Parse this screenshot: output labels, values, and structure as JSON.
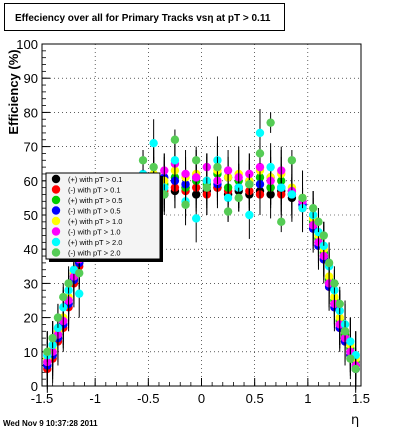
{
  "title": "Effeciency over all for Primary Tracks vsη at pT > 0.11",
  "footer": "Wed Nov  9 10:37:28 2011",
  "chart_data": {
    "type": "scatter",
    "title": "Effeciency over all for Primary Tracks vsη at pT > 0.11",
    "xlabel": "η",
    "ylabel": "Efficiency (%)",
    "xlim": [
      -1.5,
      1.5
    ],
    "ylim": [
      0,
      100
    ],
    "x_ticks": [
      "-1.5",
      "-1",
      "-0.5",
      "0",
      "0.5",
      "1",
      "1.5"
    ],
    "y_ticks": [
      "0",
      "10",
      "20",
      "30",
      "40",
      "50",
      "60",
      "70",
      "80",
      "90",
      "100"
    ],
    "grid": true,
    "legend_position": "left-middle",
    "series": [
      {
        "name": "(+) with pT > 0.1",
        "color": "#000000",
        "x": [
          -1.45,
          -1.4,
          -1.35,
          -1.3,
          -1.25,
          -1.2,
          -1.15,
          -0.55,
          -0.45,
          -0.35,
          -0.25,
          -0.15,
          -0.05,
          0.05,
          0.15,
          0.25,
          0.35,
          0.45,
          0.55,
          0.65,
          0.75,
          0.85,
          0.95,
          1.05,
          1.1,
          1.15,
          1.2,
          1.25,
          1.3,
          1.35,
          1.4,
          1.45
        ],
        "y": [
          6,
          9,
          14,
          18,
          24,
          31,
          36,
          58,
          57,
          56,
          57,
          58,
          56,
          57,
          58,
          56,
          57,
          56,
          57,
          56,
          57,
          55,
          53,
          47,
          42,
          38,
          30,
          24,
          18,
          14,
          10,
          6
        ]
      },
      {
        "name": "(-) with pT > 0.1",
        "color": "#ff0000",
        "x": [
          -1.45,
          -1.4,
          -1.35,
          -1.3,
          -1.25,
          -1.2,
          -1.15,
          -0.55,
          -0.45,
          -0.35,
          -0.25,
          -0.15,
          -0.05,
          0.05,
          0.15,
          0.25,
          0.35,
          0.45,
          0.55,
          0.65,
          0.75,
          0.85,
          0.95,
          1.05,
          1.1,
          1.15,
          1.2,
          1.25,
          1.3,
          1.35,
          1.4,
          1.45
        ],
        "y": [
          5,
          8,
          13,
          17,
          23,
          30,
          35,
          57,
          58,
          57,
          58,
          57,
          58,
          56,
          58,
          57,
          58,
          57,
          56,
          58,
          56,
          56,
          52,
          46,
          41,
          37,
          29,
          23,
          17,
          13,
          9,
          5
        ]
      },
      {
        "name": "(+) with pT > 0.5",
        "color": "#00cc00",
        "x": [
          -1.45,
          -1.4,
          -1.35,
          -1.3,
          -1.25,
          -1.2,
          -1.15,
          -0.55,
          -0.45,
          -0.35,
          -0.25,
          -0.15,
          -0.05,
          0.05,
          0.15,
          0.25,
          0.35,
          0.45,
          0.55,
          0.65,
          0.75,
          0.85,
          0.95,
          1.05,
          1.1,
          1.15,
          1.2,
          1.25,
          1.3,
          1.35,
          1.4,
          1.45
        ],
        "y": [
          7,
          10,
          15,
          19,
          25,
          32,
          37,
          59,
          60,
          59,
          61,
          58,
          60,
          59,
          62,
          58,
          60,
          59,
          61,
          58,
          60,
          57,
          54,
          48,
          43,
          39,
          31,
          25,
          19,
          15,
          11,
          7
        ]
      },
      {
        "name": "(-) with pT > 0.5",
        "color": "#0000ff",
        "x": [
          -1.45,
          -1.4,
          -1.35,
          -1.3,
          -1.25,
          -1.2,
          -1.15,
          -0.55,
          -0.45,
          -0.35,
          -0.25,
          -0.15,
          -0.05,
          0.05,
          0.15,
          0.25,
          0.35,
          0.45,
          0.55,
          0.65,
          0.75,
          0.85,
          0.95,
          1.05,
          1.1,
          1.15,
          1.2,
          1.25,
          1.3,
          1.35,
          1.4,
          1.45
        ],
        "y": [
          6,
          9,
          14,
          18,
          24,
          31,
          36,
          60,
          59,
          61,
          60,
          59,
          61,
          60,
          59,
          61,
          58,
          60,
          59,
          61,
          58,
          56,
          53,
          46,
          41,
          37,
          29,
          23,
          17,
          13,
          9,
          5
        ]
      },
      {
        "name": "(+) with pT > 1.0",
        "color": "#ffff00",
        "x": [
          -1.45,
          -1.4,
          -1.35,
          -1.3,
          -1.25,
          -1.2,
          -1.15,
          -0.55,
          -0.45,
          -0.35,
          -0.25,
          -0.15,
          -0.05,
          0.05,
          0.15,
          0.25,
          0.35,
          0.45,
          0.55,
          0.65,
          0.75,
          0.85,
          0.95,
          1.05,
          1.1,
          1.15,
          1.2,
          1.25,
          1.3,
          1.35,
          1.4,
          1.45
        ],
        "y": [
          8,
          11,
          16,
          20,
          26,
          33,
          38,
          61,
          62,
          60,
          63,
          61,
          62,
          60,
          63,
          61,
          62,
          60,
          63,
          61,
          62,
          58,
          55,
          49,
          44,
          40,
          32,
          26,
          20,
          16,
          12,
          8
        ]
      },
      {
        "name": "(-) with pT > 1.0",
        "color": "#ff00ff",
        "x": [
          -1.45,
          -1.4,
          -1.35,
          -1.3,
          -1.25,
          -1.2,
          -1.15,
          -0.55,
          -0.45,
          -0.35,
          -0.25,
          -0.15,
          -0.05,
          0.05,
          0.15,
          0.25,
          0.35,
          0.45,
          0.55,
          0.65,
          0.75,
          0.85,
          0.95,
          1.05,
          1.1,
          1.15,
          1.2,
          1.25,
          1.3,
          1.35,
          1.4,
          1.45
        ],
        "y": [
          7,
          10,
          15,
          19,
          25,
          32,
          37,
          62,
          61,
          63,
          65,
          62,
          61,
          64,
          60,
          63,
          61,
          62,
          64,
          60,
          63,
          57,
          54,
          47,
          42,
          38,
          30,
          24,
          18,
          14,
          10,
          6
        ]
      },
      {
        "name": "(+) with pT > 2.0",
        "color": "#00ffff",
        "x": [
          -1.45,
          -1.4,
          -1.35,
          -1.3,
          -1.25,
          -1.2,
          -1.15,
          -0.55,
          -0.45,
          -0.35,
          -0.25,
          -0.15,
          -0.05,
          0.05,
          0.15,
          0.25,
          0.35,
          0.45,
          0.55,
          0.65,
          0.75,
          0.85,
          0.95,
          1.05,
          1.1,
          1.15,
          1.2,
          1.25,
          1.3,
          1.35,
          1.4,
          1.45
        ],
        "y": [
          9,
          12,
          17,
          23,
          28,
          34,
          27,
          62,
          71,
          58,
          66,
          54,
          49,
          60,
          66,
          55,
          58,
          50,
          74,
          64,
          58,
          56,
          52,
          50,
          45,
          41,
          35,
          28,
          22,
          18,
          13,
          9
        ]
      },
      {
        "name": "(-) with pT > 2.0",
        "color": "#55cc55",
        "x": [
          -1.45,
          -1.4,
          -1.35,
          -1.3,
          -1.25,
          -1.2,
          -1.15,
          -0.55,
          -0.45,
          -0.35,
          -0.25,
          -0.15,
          -0.05,
          0.05,
          0.15,
          0.25,
          0.35,
          0.45,
          0.55,
          0.65,
          0.75,
          0.85,
          0.95,
          1.05,
          1.1,
          1.15,
          1.2,
          1.25,
          1.3,
          1.35,
          1.4,
          1.45
        ],
        "y": [
          10,
          14,
          20,
          26,
          30,
          38,
          33,
          66,
          64,
          56,
          72,
          53,
          66,
          58,
          64,
          51,
          55,
          59,
          68,
          77,
          48,
          66,
          55,
          52,
          48,
          44,
          36,
          30,
          24,
          16,
          8,
          5
        ]
      }
    ]
  }
}
